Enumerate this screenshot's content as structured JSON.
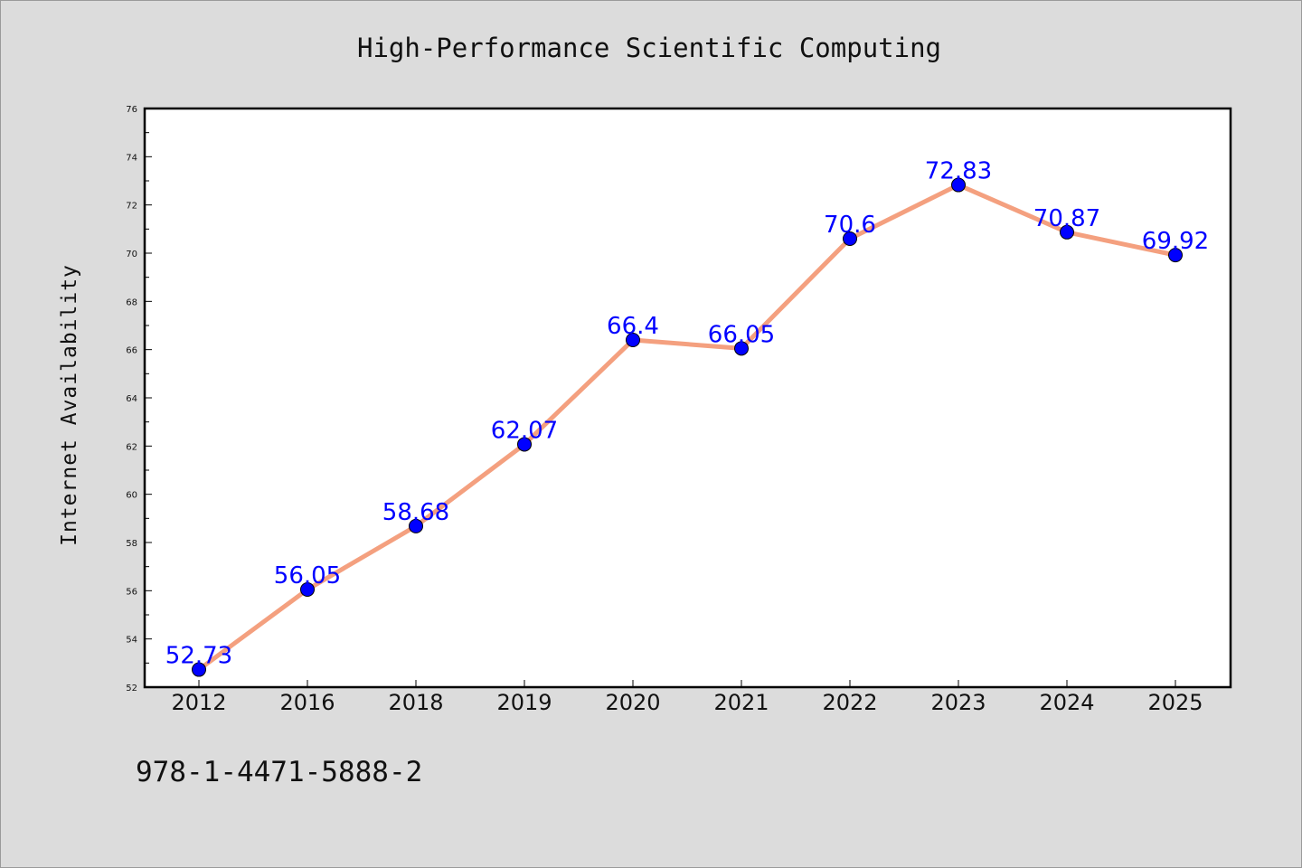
{
  "chart_data": {
    "type": "line",
    "title": "High-Performance Scientific Computing",
    "xlabel": "",
    "ylabel": "Internet Availability",
    "categories": [
      "2012",
      "2016",
      "2018",
      "2019",
      "2020",
      "2021",
      "2022",
      "2023",
      "2024",
      "2025"
    ],
    "series": [
      {
        "values": [
          52.73,
          56.05,
          58.68,
          62.07,
          66.4,
          66.05,
          70.6,
          72.83,
          70.87,
          69.92
        ],
        "data_labels": [
          "52.73",
          "56.05",
          "58.68",
          "62.07",
          "66.4",
          "66.05",
          "70.6",
          "72.83",
          "70.87",
          "69.92"
        ]
      }
    ],
    "ylim": [
      52,
      76
    ],
    "yticks": [
      "52",
      "54",
      "56",
      "58",
      "60",
      "62",
      "64",
      "66",
      "68",
      "70",
      "72",
      "74",
      "76"
    ],
    "grid": false,
    "line_color": "#f4a07f",
    "marker_color": "#0000ff",
    "label_color": "#0000ff",
    "plot_background": "#ffffff",
    "page_background": "#dcdcdc"
  },
  "footer": {
    "text": "978-1-4471-5888-2"
  }
}
